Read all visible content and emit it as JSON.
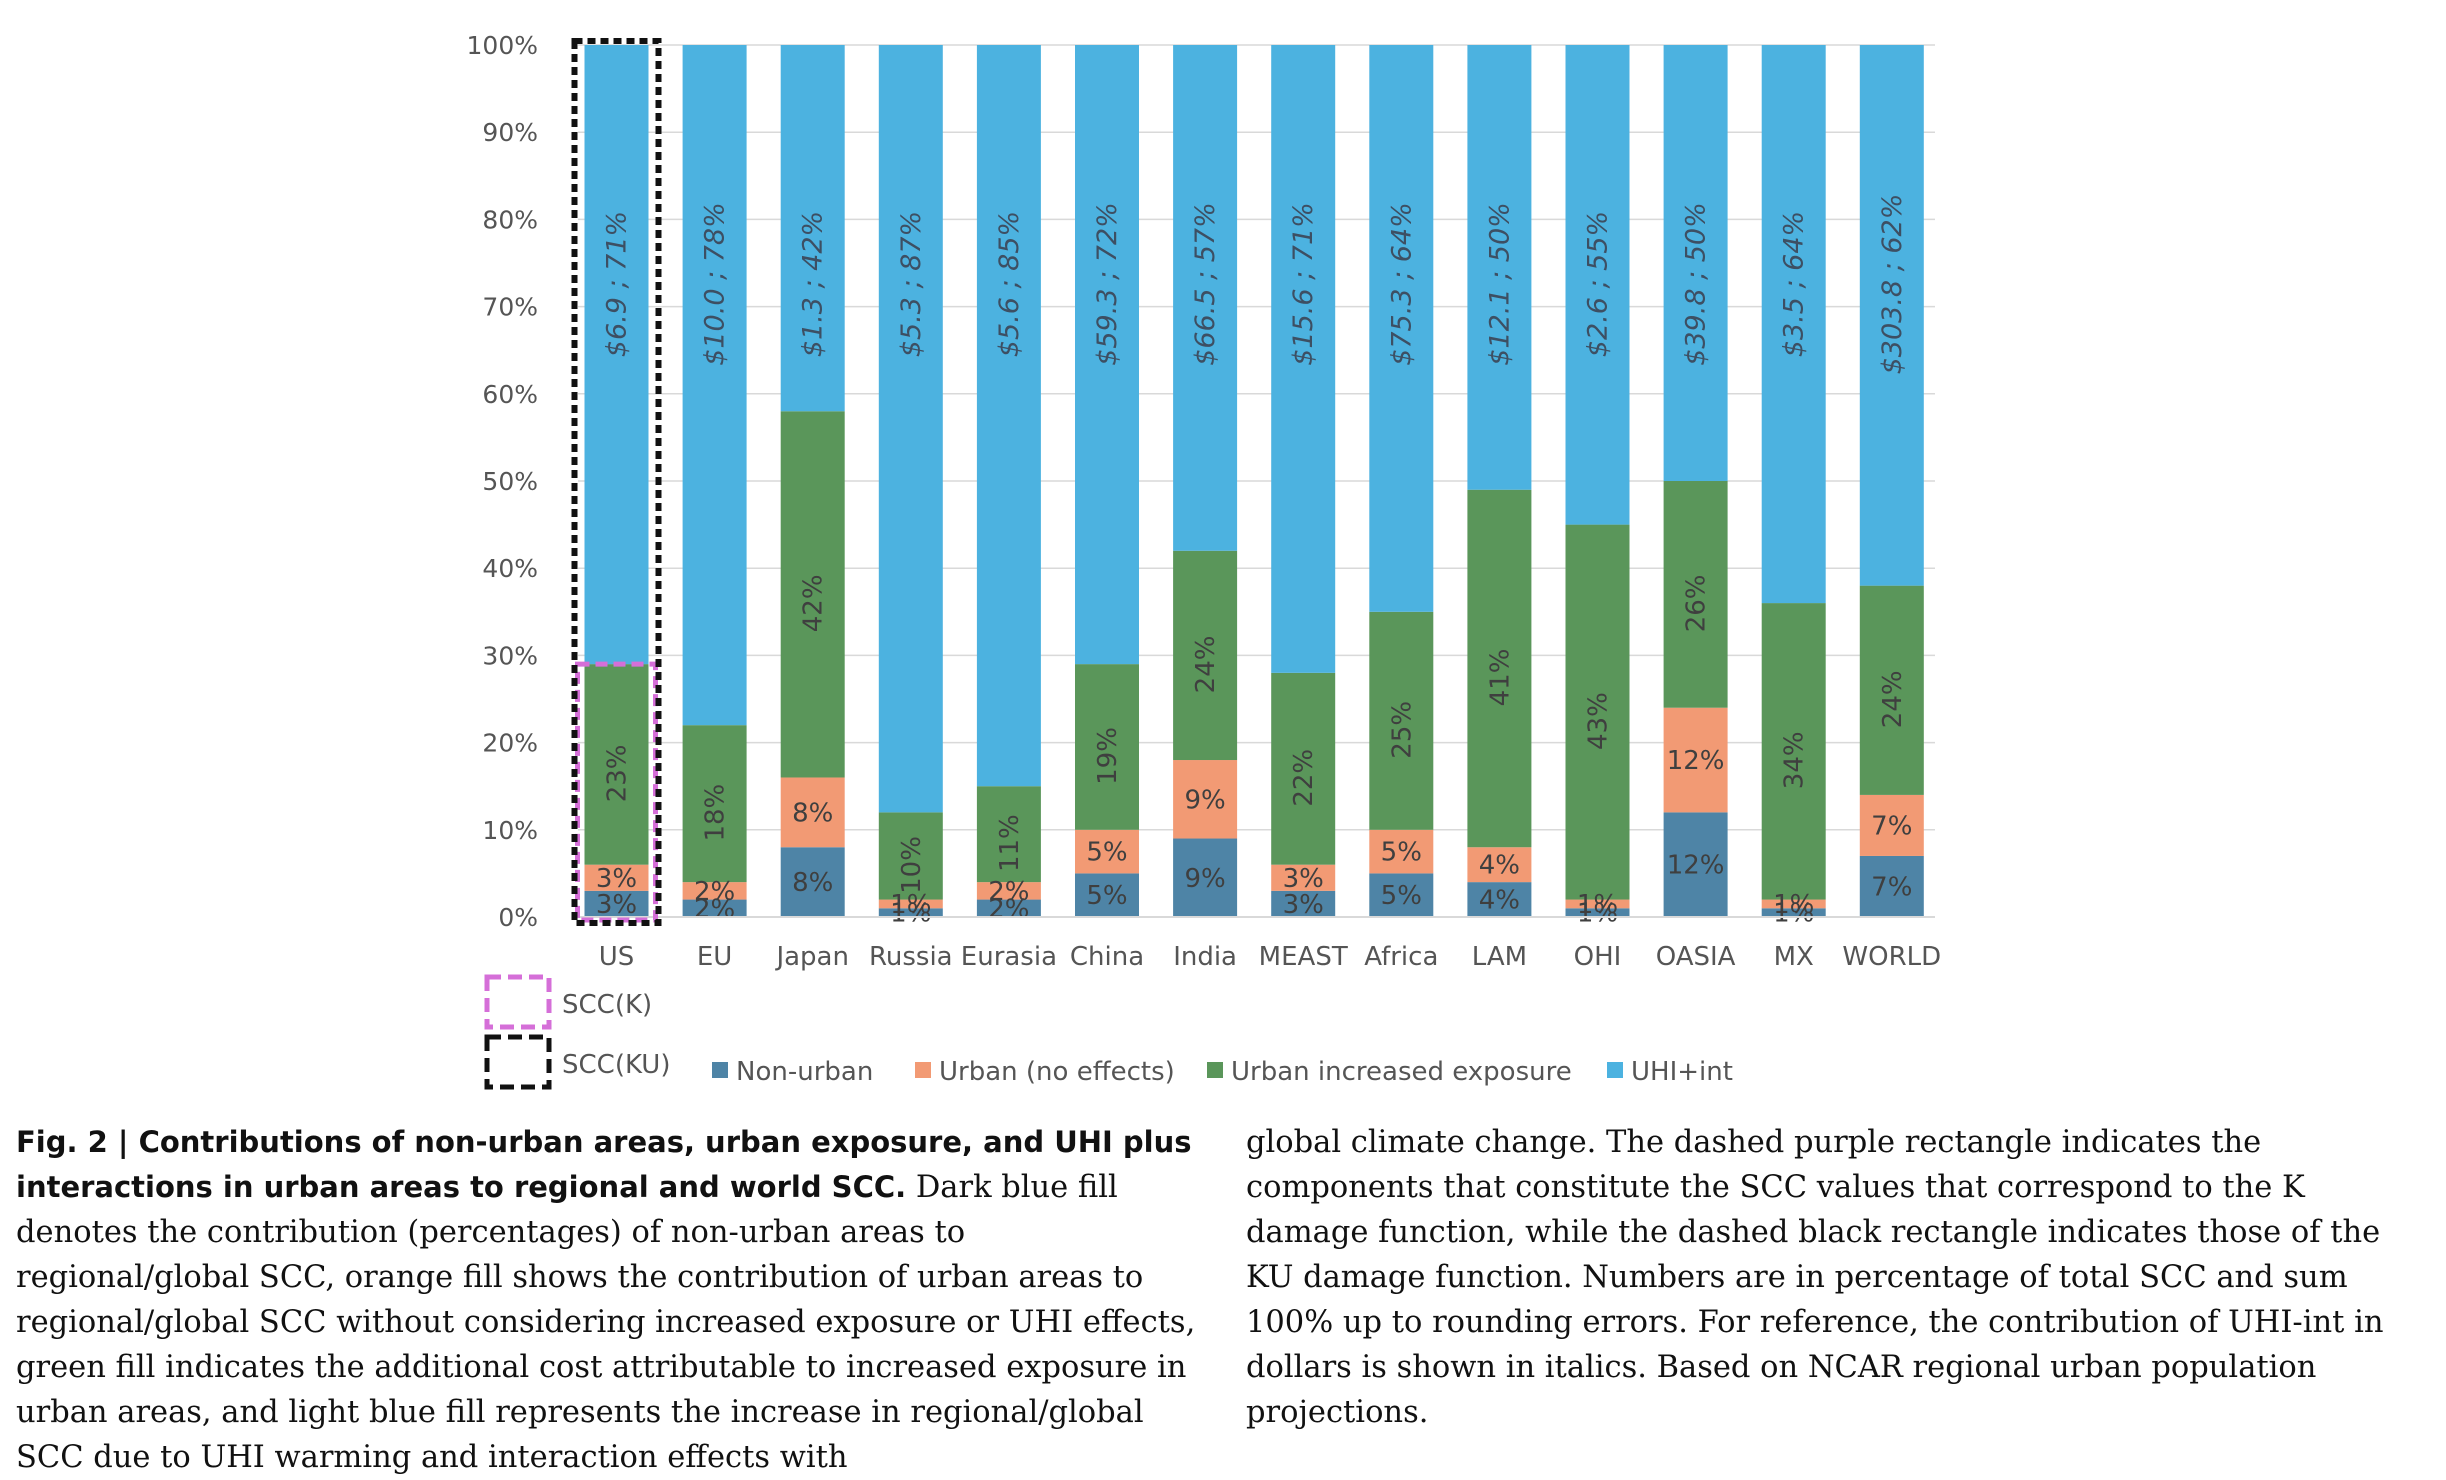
{
  "chart_data": {
    "type": "bar",
    "stacked": true,
    "ylim": [
      0,
      100
    ],
    "yticks": [
      "0%",
      "10%",
      "20%",
      "30%",
      "40%",
      "50%",
      "60%",
      "70%",
      "80%",
      "90%",
      "100%"
    ],
    "grid": true,
    "categories": [
      "US",
      "EU",
      "Japan",
      "Russia",
      "Eurasia",
      "China",
      "India",
      "MEAST",
      "Africa",
      "LAM",
      "OHI",
      "OASIA",
      "MX",
      "WORLD"
    ],
    "series": [
      {
        "name": "Non-urban",
        "color": "#4e84a6",
        "values": [
          3,
          2,
          8,
          1,
          2,
          5,
          9,
          3,
          5,
          4,
          1,
          12,
          1,
          7
        ],
        "labels": [
          "3%",
          "2%",
          "8%",
          "1%",
          "2%",
          "5%",
          "9%",
          "3%",
          "5%",
          "4%",
          "1%",
          "12%",
          "1%",
          "7%"
        ]
      },
      {
        "name": "Urban (no effects)",
        "color": "#f29a74",
        "values": [
          3,
          2,
          8,
          1,
          2,
          5,
          9,
          3,
          5,
          4,
          1,
          12,
          1,
          7
        ],
        "labels": [
          "3%",
          "2%",
          "8%",
          "1%",
          "2%",
          "5%",
          "9%",
          "3%",
          "5%",
          "4%",
          "1%",
          "12%",
          "1%",
          "7%"
        ]
      },
      {
        "name": "Urban increased exposure",
        "color": "#5a965a",
        "values": [
          23,
          18,
          42,
          10,
          11,
          19,
          24,
          22,
          25,
          41,
          43,
          26,
          34,
          24
        ],
        "labels": [
          "23%",
          "18%",
          "42%",
          "10%",
          "11%",
          "19%",
          "24%",
          "22%",
          "25%",
          "41%",
          "43%",
          "26%",
          "34%",
          "24%"
        ]
      },
      {
        "name": "UHI+int",
        "color": "#4cb2e0",
        "values": [
          71,
          78,
          42,
          87,
          85,
          72,
          57,
          71,
          64,
          50,
          55,
          50,
          64,
          62
        ],
        "labels": [
          "$6.9 ; 71%",
          "$10.0 ; 78%",
          "$1.3 ; 42%",
          "$5.3 ; 87%",
          "$5.6 ; 85%",
          "$59.3 ; 72%",
          "$66.5 ; 57%",
          "$15.6 ; 71%",
          "$75.3 ; 64%",
          "$12.1 ; 50%",
          "$2.6 ; 55%",
          "$39.8 ; 50%",
          "$3.5 ; 64%",
          "$303.8 ; 62%"
        ]
      }
    ],
    "boxes": [
      {
        "name": "SCC(K)",
        "color": "#d56fd8",
        "style": "dashed"
      },
      {
        "name": "SCC(KU)",
        "color": "#111111",
        "style": "dashed"
      }
    ],
    "legend_position": "bottom"
  },
  "caption": {
    "bold": "Fig. 2 | Contributions of non-urban areas, urban exposure, and UHI plus interactions in urban areas to regional and world SCC.",
    "left_text": " Dark blue fill denotes the contribution (percentages) of non-urban areas to regional/global SCC, orange fill shows the contribution of urban areas to regional/global SCC without considering increased exposure or UHI effects, green fill indicates the additional cost attributable to increased exposure in urban areas, and light blue fill represents the increase in regional/global SCC due to UHI warming and interaction effects with",
    "right_text": "global climate change. The dashed purple rectangle indicates the components that constitute the SCC values that correspond to the K damage function, while the dashed black rectangle indicates those of the KU damage function. Numbers are in percentage of total SCC and sum 100% up to rounding errors. For reference, the contribution of UHI-int in dollars is shown in italics. Based on NCAR regional urban population projections."
  }
}
